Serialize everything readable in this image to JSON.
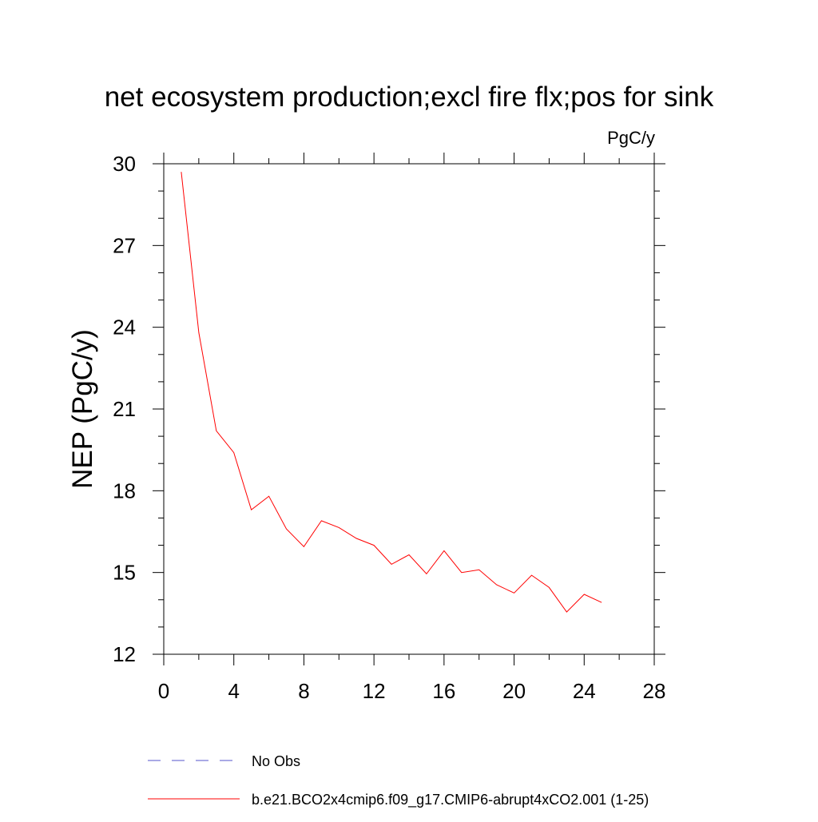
{
  "chart_data": {
    "type": "line",
    "title": "net ecosystem production;excl fire flx;pos for sink",
    "units": "PgC/y",
    "xlabel": "",
    "ylabel": "NEP  (PgC/y)",
    "xlim": [
      0,
      28
    ],
    "ylim": [
      12,
      30
    ],
    "x_ticks": [
      0,
      4,
      8,
      12,
      16,
      20,
      24,
      28
    ],
    "y_ticks": [
      12,
      15,
      18,
      21,
      24,
      27,
      30
    ],
    "grid": false,
    "legend_position": "bottom",
    "series": [
      {
        "name": "b.e21.BCO2x4cmip6.f09_g17.CMIP6-abrupt4xCO2.001 (1-25)",
        "color": "#ff0000",
        "style": "solid",
        "x": [
          1,
          2,
          3,
          4,
          5,
          6,
          7,
          8,
          9,
          10,
          11,
          12,
          13,
          14,
          15,
          16,
          17,
          18,
          19,
          20,
          21,
          22,
          23,
          24,
          25
        ],
        "values": [
          29.7,
          23.8,
          20.2,
          19.4,
          17.3,
          17.8,
          16.6,
          15.95,
          16.9,
          16.65,
          16.25,
          16.0,
          15.3,
          15.65,
          14.95,
          15.8,
          15.0,
          15.1,
          14.55,
          14.25,
          14.9,
          14.45,
          13.55,
          14.2,
          13.9
        ]
      }
    ],
    "legend": [
      {
        "label": "No Obs",
        "color": "#5555cc",
        "style": "dashed"
      },
      {
        "label": "b.e21.BCO2x4cmip6.f09_g17.CMIP6-abrupt4xCO2.001 (1-25)",
        "color": "#ff0000",
        "style": "solid"
      }
    ]
  }
}
